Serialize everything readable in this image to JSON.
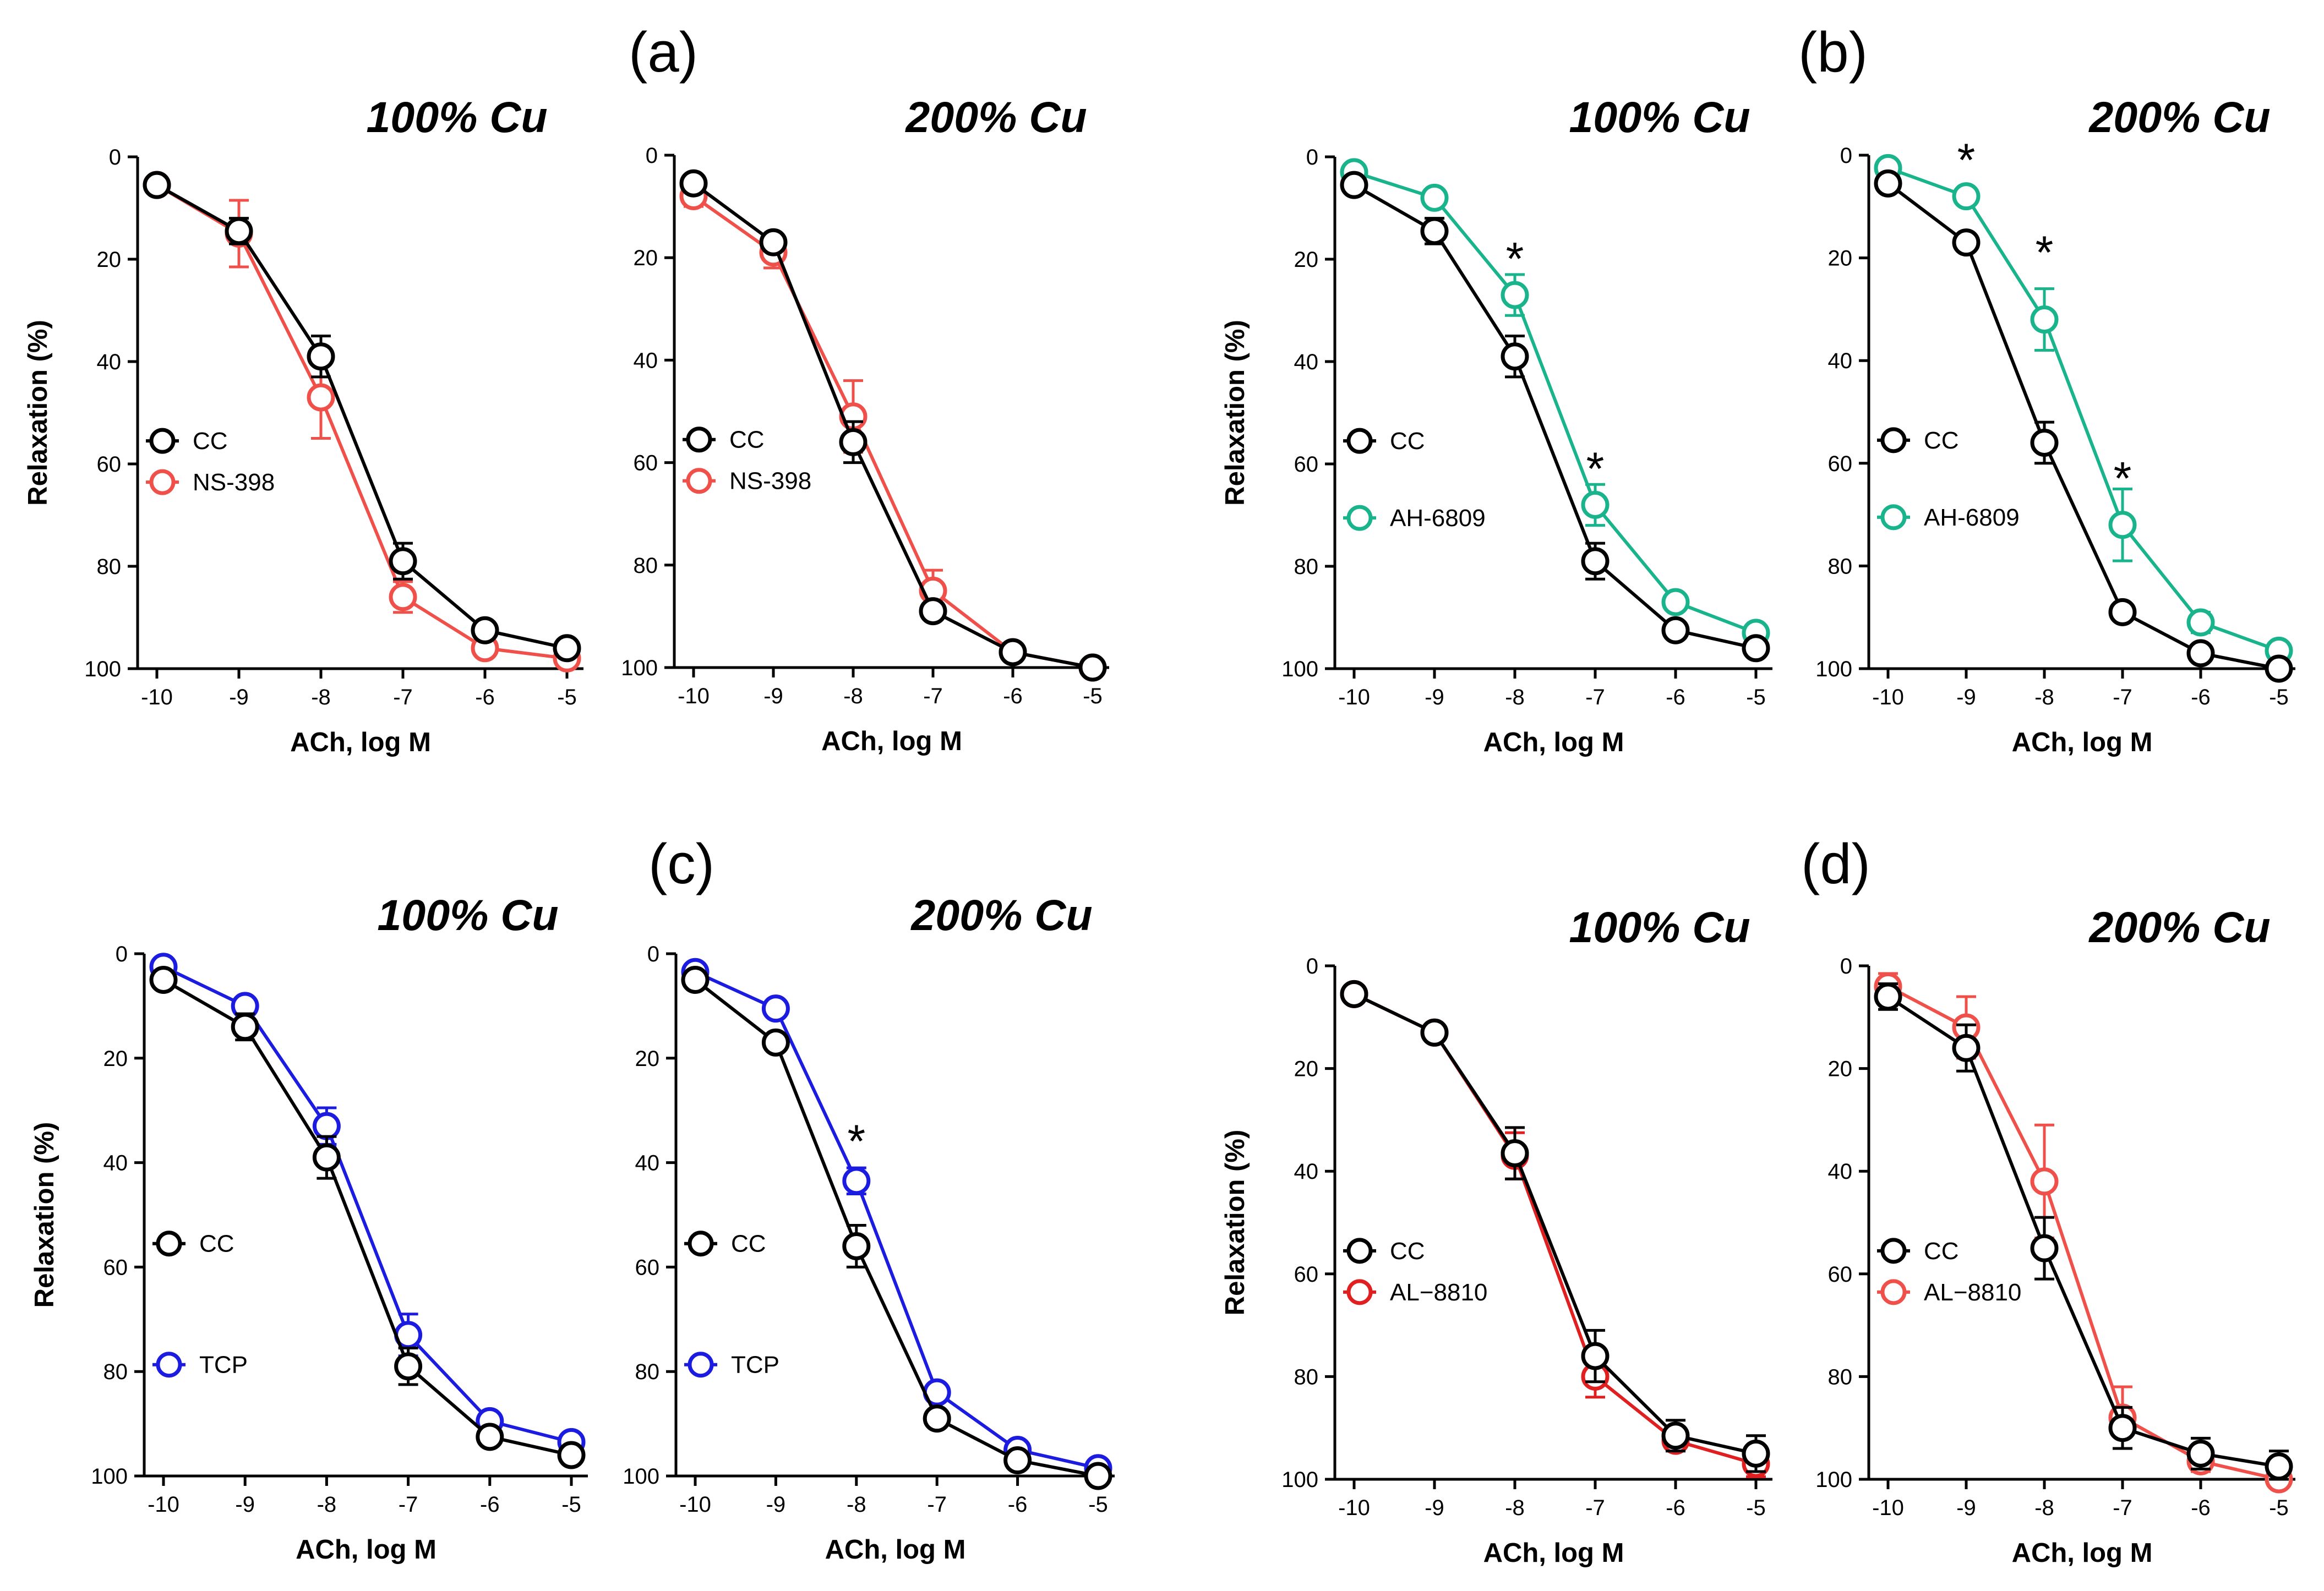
{
  "panel_letters": [
    {
      "id": "a",
      "text": "(a)"
    },
    {
      "id": "b",
      "text": "(b)"
    },
    {
      "id": "c",
      "text": "(c)"
    },
    {
      "id": "d",
      "text": "(d)"
    }
  ],
  "colors": {
    "control": "#000000",
    "ns398": "#f0504a",
    "ah6809": "#19b38c",
    "tcp": "#1c1ce0",
    "al8810_100": "#e02020",
    "al8810_200": "#f0504a"
  },
  "chart_data": [
    {
      "type": "line",
      "title": "100% Cu",
      "group": "a",
      "xlabel": "ACh, log M",
      "ylabel": "Relaxation (%)",
      "x": [
        -10,
        -9,
        -8,
        -7,
        -6,
        -5
      ],
      "xlim": [
        -10,
        -5
      ],
      "ylim": [
        0,
        100
      ],
      "y_inverted": true,
      "xticks": [
        "-10",
        "-9",
        "-8",
        "-7",
        "-6",
        "-5"
      ],
      "yticks": [
        "0",
        "20",
        "40",
        "60",
        "80",
        "100"
      ],
      "legend": "middle-left",
      "series": [
        {
          "name": "CC",
          "color": "#000000",
          "values": [
            5.5,
            14.5,
            39,
            79,
            92.5,
            96
          ],
          "errors": [
            0.5,
            2.5,
            4,
            3.5,
            0.5,
            0.5
          ]
        },
        {
          "name": "NS-398",
          "color": "#f0504a",
          "values": [
            5.5,
            15,
            47,
            86,
            96,
            98
          ],
          "errors": [
            0.5,
            6.5,
            8,
            3,
            0.5,
            0.5
          ]
        }
      ],
      "annotations": []
    },
    {
      "type": "line",
      "title": "200% Cu",
      "group": "a",
      "xlabel": "ACh, log M",
      "ylabel": "",
      "x": [
        -10,
        -9,
        -8,
        -7,
        -6,
        -5
      ],
      "xlim": [
        -10,
        -5
      ],
      "ylim": [
        0,
        100
      ],
      "y_inverted": true,
      "xticks": [
        "-10",
        "-9",
        "-8",
        "-7",
        "-6",
        "-5"
      ],
      "yticks": [
        "0",
        "20",
        "40",
        "60",
        "80",
        "100"
      ],
      "legend": "middle-left",
      "series": [
        {
          "name": "CC",
          "color": "#000000",
          "values": [
            5.5,
            17,
            56,
            89,
            97,
            100
          ],
          "errors": [
            0.5,
            1.5,
            4,
            1,
            0.5,
            0.5
          ]
        },
        {
          "name": "NS-398",
          "color": "#f0504a",
          "values": [
            8,
            19,
            51,
            85,
            97,
            100
          ],
          "errors": [
            2,
            3,
            7,
            4,
            0.5,
            0.5
          ]
        }
      ],
      "annotations": []
    },
    {
      "type": "line",
      "title": "100% Cu",
      "group": "b",
      "xlabel": "ACh, log M",
      "ylabel": "Relaxation (%)",
      "x": [
        -10,
        -9,
        -8,
        -7,
        -6,
        -5
      ],
      "xlim": [
        -10,
        -5
      ],
      "ylim": [
        0,
        100
      ],
      "y_inverted": true,
      "xticks": [
        "-10",
        "-9",
        "-8",
        "-7",
        "-6",
        "-5"
      ],
      "yticks": [
        "0",
        "20",
        "40",
        "60",
        "80",
        "100"
      ],
      "legend": "middle-left",
      "series": [
        {
          "name": "CC",
          "color": "#000000",
          "values": [
            5.5,
            14.5,
            39,
            79,
            92.5,
            96
          ],
          "errors": [
            0.5,
            2.5,
            4,
            3.5,
            0.5,
            0.5
          ]
        },
        {
          "name": "AH-6809",
          "color": "#19b38c",
          "values": [
            3,
            8,
            27,
            68,
            87,
            93
          ],
          "errors": [
            0.5,
            1,
            4,
            4,
            0.5,
            0.5
          ]
        }
      ],
      "annotations": [
        {
          "text": "*",
          "x": -8,
          "y": 20
        },
        {
          "text": "*",
          "x": -7,
          "y": 61
        }
      ]
    },
    {
      "type": "line",
      "title": "200% Cu",
      "group": "b",
      "xlabel": "ACh, log M",
      "ylabel": "",
      "x": [
        -10,
        -9,
        -8,
        -7,
        -6,
        -5
      ],
      "xlim": [
        -10,
        -5
      ],
      "ylim": [
        0,
        100
      ],
      "y_inverted": true,
      "xticks": [
        "-10",
        "-9",
        "-8",
        "-7",
        "-6",
        "-5"
      ],
      "yticks": [
        "0",
        "20",
        "40",
        "60",
        "80",
        "100"
      ],
      "legend": "middle-left",
      "series": [
        {
          "name": "CC",
          "color": "#000000",
          "values": [
            5.5,
            17,
            56,
            89,
            97,
            100
          ],
          "errors": [
            0.5,
            1,
            4,
            1,
            0.5,
            0.5
          ]
        },
        {
          "name": "AH-6809",
          "color": "#19b38c",
          "values": [
            2.5,
            8,
            32,
            72,
            91,
            96.5
          ],
          "errors": [
            0.5,
            1,
            6,
            7,
            2,
            0.5
          ]
        }
      ],
      "annotations": [
        {
          "text": "*",
          "x": -9,
          "y": 1
        },
        {
          "text": "*",
          "x": -8,
          "y": 19
        },
        {
          "text": "*",
          "x": -7,
          "y": 63
        }
      ]
    },
    {
      "type": "line",
      "title": "100% Cu",
      "group": "c",
      "xlabel": "ACh, log M",
      "ylabel": "Relaxation (%)",
      "x": [
        -10,
        -9,
        -8,
        -7,
        -6,
        -5
      ],
      "xlim": [
        -10,
        -5
      ],
      "ylim": [
        0,
        100
      ],
      "y_inverted": true,
      "xticks": [
        "-10",
        "-9",
        "-8",
        "-7",
        "-6",
        "-5"
      ],
      "yticks": [
        "0",
        "20",
        "40",
        "60",
        "80",
        "100"
      ],
      "legend": "middle-left",
      "series": [
        {
          "name": "CC",
          "color": "#000000",
          "values": [
            5,
            14,
            39,
            79,
            92.5,
            96
          ],
          "errors": [
            0.5,
            2.5,
            4,
            3.5,
            0.5,
            0.5
          ]
        },
        {
          "name": "TCP",
          "color": "#1c1ce0",
          "values": [
            2.5,
            10,
            33,
            73,
            89.5,
            93.5
          ],
          "errors": [
            0.5,
            1,
            3.5,
            4,
            0.5,
            0.5
          ]
        }
      ],
      "annotations": []
    },
    {
      "type": "line",
      "title": "200% Cu",
      "group": "c",
      "xlabel": "ACh, log M",
      "ylabel": "",
      "x": [
        -10,
        -9,
        -8,
        -7,
        -6,
        -5
      ],
      "xlim": [
        -10,
        -5
      ],
      "ylim": [
        0,
        100
      ],
      "y_inverted": true,
      "xticks": [
        "-10",
        "-9",
        "-8",
        "-7",
        "-6",
        "-5"
      ],
      "yticks": [
        "0",
        "20",
        "40",
        "60",
        "80",
        "100"
      ],
      "legend": "middle-left",
      "series": [
        {
          "name": "CC",
          "color": "#000000",
          "values": [
            5,
            17,
            56,
            89,
            97,
            100
          ],
          "errors": [
            0.5,
            1,
            4,
            1,
            0.5,
            0.5
          ]
        },
        {
          "name": "TCP",
          "color": "#1c1ce0",
          "values": [
            3.5,
            10.5,
            43.5,
            84,
            95,
            98.5
          ],
          "errors": [
            0.5,
            1,
            2.5,
            1,
            0.5,
            0.5
          ]
        }
      ],
      "annotations": [
        {
          "text": "*",
          "x": -8,
          "y": 36
        }
      ]
    },
    {
      "type": "line",
      "title": "100% Cu",
      "group": "d",
      "xlabel": "ACh, log M",
      "ylabel": "Relaxation (%)",
      "x": [
        -10,
        -9,
        -8,
        -7,
        -6,
        -5
      ],
      "xlim": [
        -10,
        -5
      ],
      "ylim": [
        0,
        100
      ],
      "y_inverted": true,
      "xticks": [
        "-10",
        "-9",
        "-8",
        "-7",
        "-6",
        "-5"
      ],
      "yticks": [
        "0",
        "20",
        "40",
        "60",
        "80",
        "100"
      ],
      "legend": "middle-left",
      "series": [
        {
          "name": "CC",
          "color": "#000000",
          "values": [
            5.5,
            13,
            36.5,
            76,
            91.5,
            95
          ],
          "errors": [
            0.5,
            1.5,
            5,
            5,
            3,
            3.5
          ]
        },
        {
          "name": "AL−8810",
          "color": "#e02020",
          "values": [
            5.5,
            13,
            37,
            80,
            92.5,
            97
          ],
          "errors": [
            0.5,
            1.5,
            4.5,
            4,
            2,
            2.5
          ]
        }
      ],
      "annotations": []
    },
    {
      "type": "line",
      "title": "200% Cu",
      "group": "d",
      "xlabel": "ACh, log M",
      "ylabel": "",
      "x": [
        -10,
        -9,
        -8,
        -7,
        -6,
        -5
      ],
      "xlim": [
        -10,
        -5
      ],
      "ylim": [
        0,
        100
      ],
      "y_inverted": true,
      "xticks": [
        "-10",
        "-9",
        "-8",
        "-7",
        "-6",
        "-5"
      ],
      "yticks": [
        "0",
        "20",
        "40",
        "60",
        "80",
        "100"
      ],
      "legend": "middle-left",
      "series": [
        {
          "name": "CC",
          "color": "#000000",
          "values": [
            6,
            16,
            55,
            90,
            95,
            97.5
          ],
          "errors": [
            2.5,
            4.5,
            6,
            4,
            3,
            3
          ]
        },
        {
          "name": "AL−8810",
          "color": "#f0504a",
          "values": [
            4,
            12,
            42,
            88,
            96.5,
            100
          ],
          "errors": [
            2.5,
            6,
            11,
            6,
            2,
            0.5
          ]
        }
      ],
      "annotations": []
    }
  ]
}
